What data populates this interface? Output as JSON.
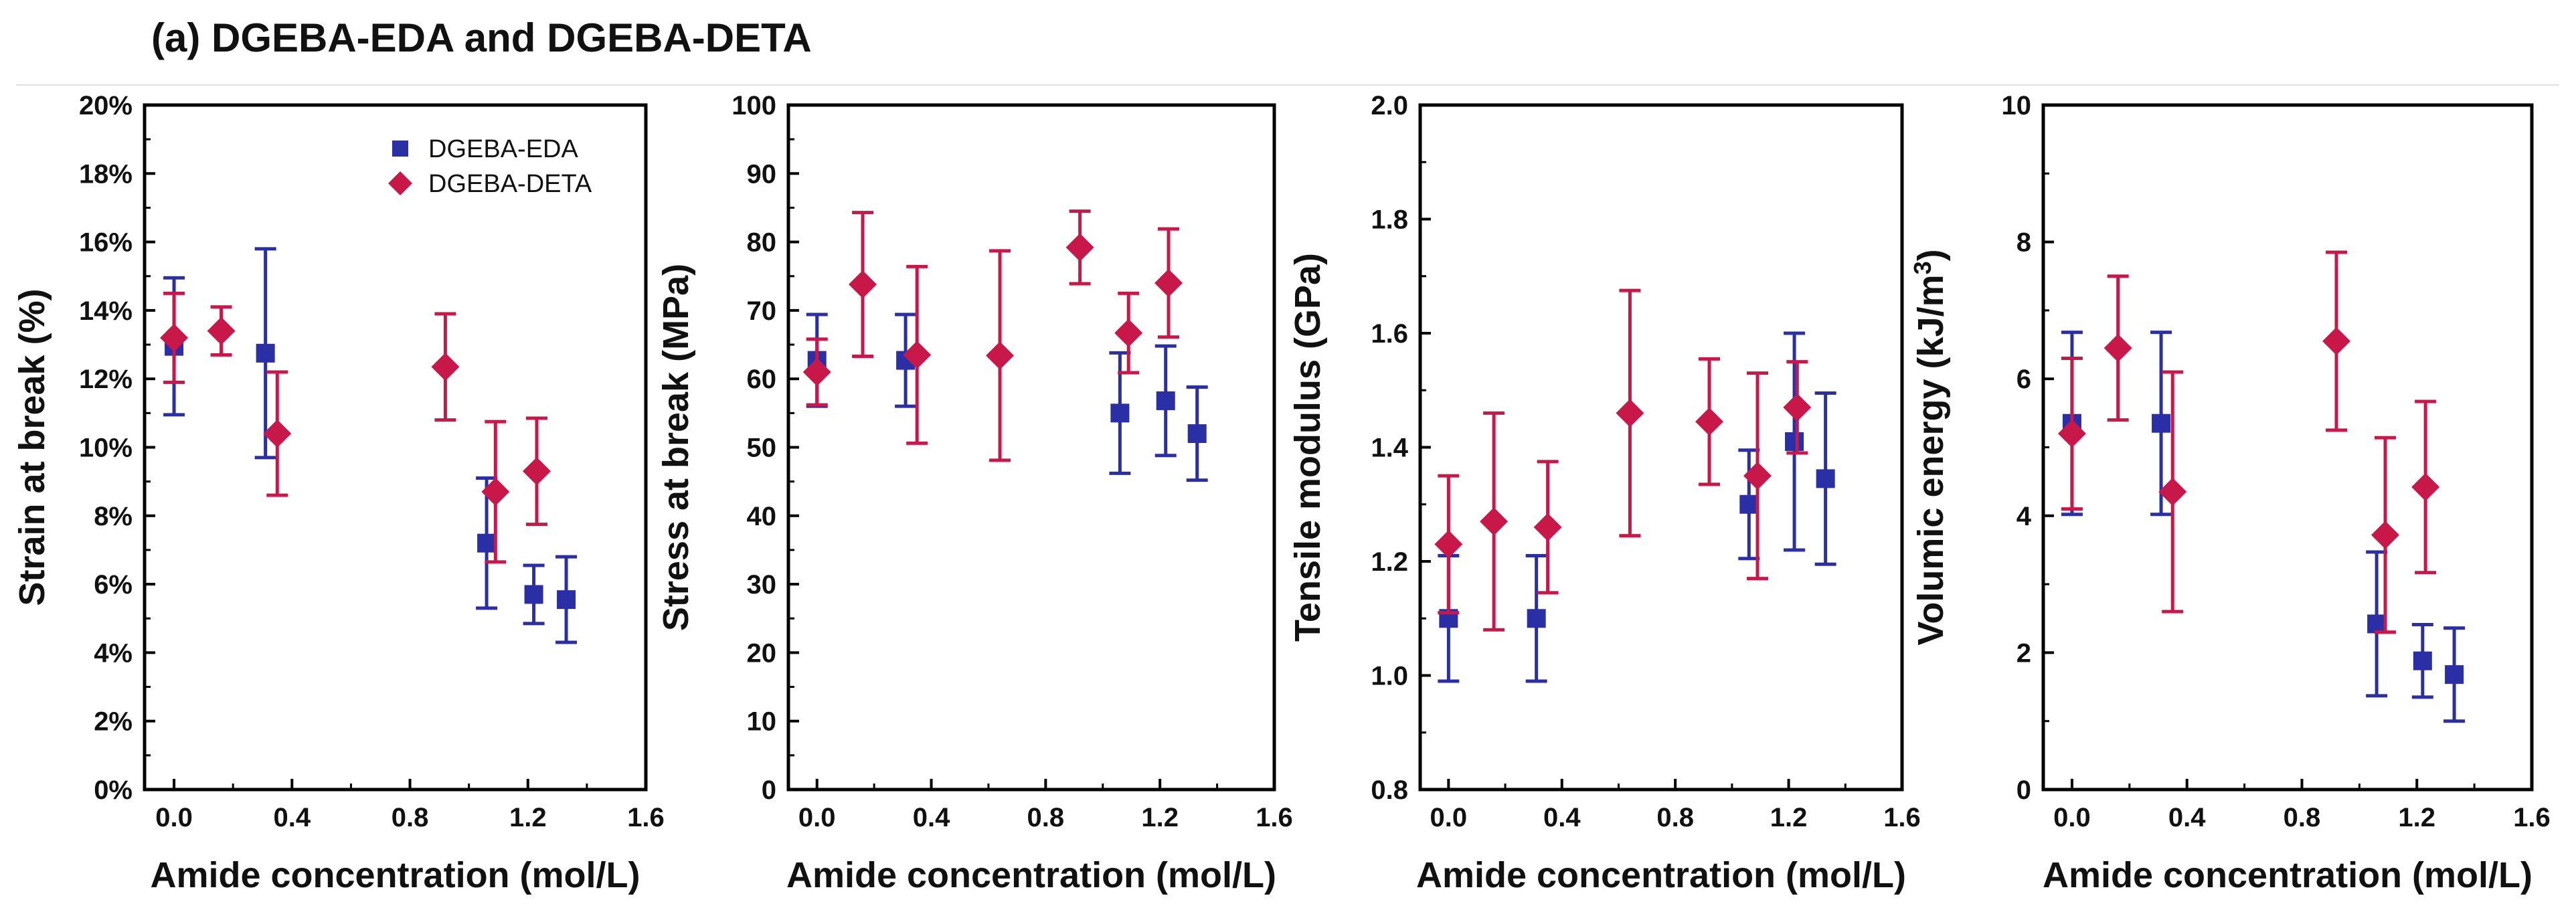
{
  "figure_title": "(a) DGEBA-EDA and DGEBA-DETA",
  "colors": {
    "DGEBA-EDA": "#2b2fa6",
    "DGEBA-DETA": "#c8184a"
  },
  "chart_data": [
    {
      "type": "scatter",
      "xlabel": "Amide concentration (mol/L)",
      "ylabel": "Strain at break (%)",
      "xlim": [
        -0.1,
        1.6
      ],
      "ylim": [
        0,
        20
      ],
      "xticks": [
        "0.0",
        "0.4",
        "0.8",
        "1.2",
        "1.6"
      ],
      "yticks": [
        "0%",
        "2%",
        "4%",
        "6%",
        "8%",
        "10%",
        "12%",
        "14%",
        "16%",
        "18%",
        "20%"
      ],
      "legend": "top-right",
      "series": [
        {
          "name": "DGEBA-EDA",
          "marker": "square",
          "x": [
            0.0,
            0.31,
            1.06,
            1.22,
            1.33
          ],
          "y": [
            12.95,
            12.75,
            7.2,
            5.7,
            5.55
          ],
          "err": [
            2.0,
            3.05,
            1.9,
            0.85,
            1.25
          ]
        },
        {
          "name": "DGEBA-DETA",
          "marker": "diamond",
          "x": [
            0.0,
            0.16,
            0.35,
            0.92,
            1.09,
            1.23
          ],
          "y": [
            13.2,
            13.4,
            10.4,
            12.35,
            8.7,
            9.3
          ],
          "err": [
            1.3,
            0.7,
            1.8,
            1.55,
            2.05,
            1.55
          ]
        }
      ]
    },
    {
      "type": "scatter",
      "xlabel": "Amide concentration (mol/L)",
      "ylabel": "Stress at break (MPa)",
      "xlim": [
        -0.1,
        1.6
      ],
      "ylim": [
        0,
        100
      ],
      "xticks": [
        "0.0",
        "0.4",
        "0.8",
        "1.2",
        "1.6"
      ],
      "yticks": [
        "0",
        "10",
        "20",
        "30",
        "40",
        "50",
        "60",
        "70",
        "80",
        "90",
        "100"
      ],
      "series": [
        {
          "name": "DGEBA-EDA",
          "marker": "square",
          "x": [
            0.0,
            0.31,
            1.06,
            1.22,
            1.33
          ],
          "y": [
            62.7,
            62.7,
            55.0,
            56.8,
            52.0
          ],
          "err": [
            6.7,
            6.7,
            8.8,
            8.0,
            6.8
          ]
        },
        {
          "name": "DGEBA-DETA",
          "marker": "diamond",
          "x": [
            0.0,
            0.16,
            0.35,
            0.64,
            0.92,
            1.09,
            1.23
          ],
          "y": [
            61.0,
            73.8,
            63.5,
            63.4,
            79.2,
            66.7,
            74.0
          ],
          "err": [
            4.8,
            10.5,
            12.9,
            15.3,
            5.3,
            5.8,
            7.9
          ]
        }
      ]
    },
    {
      "type": "scatter",
      "xlabel": "Amide concentration (mol/L)",
      "ylabel": "Tensile modulus (GPa)",
      "xlim": [
        -0.1,
        1.6
      ],
      "ylim": [
        0.8,
        2.0
      ],
      "xticks": [
        "0.0",
        "0.4",
        "0.8",
        "1.2",
        "1.6"
      ],
      "yticks": [
        "0.8",
        "1.0",
        "1.2",
        "1.4",
        "1.6",
        "1.8",
        "2.0"
      ],
      "series": [
        {
          "name": "DGEBA-EDA",
          "marker": "square",
          "x": [
            0.0,
            0.31,
            1.06,
            1.22,
            1.33
          ],
          "y": [
            1.1,
            1.1,
            1.3,
            1.41,
            1.345
          ],
          "err": [
            0.11,
            0.11,
            0.095,
            0.19,
            0.15
          ]
        },
        {
          "name": "DGEBA-DETA",
          "marker": "diamond",
          "x": [
            0.0,
            0.16,
            0.35,
            0.64,
            0.92,
            1.09,
            1.23
          ],
          "y": [
            1.23,
            1.27,
            1.26,
            1.46,
            1.445,
            1.35,
            1.47
          ],
          "err": [
            0.12,
            0.19,
            0.115,
            0.215,
            0.11,
            0.18,
            0.08
          ]
        }
      ]
    },
    {
      "type": "scatter",
      "xlabel": "Amide concentration (mol/L)",
      "ylabel": "Volumic energy (kJ/m",
      "ylabel_sup": "3",
      "ylabel_tail": ")",
      "xlim": [
        -0.1,
        1.6
      ],
      "ylim": [
        0,
        10
      ],
      "xticks": [
        "0.0",
        "0.4",
        "0.8",
        "1.2",
        "1.6"
      ],
      "yticks": [
        "0",
        "2",
        "4",
        "6",
        "8",
        "10"
      ],
      "series": [
        {
          "name": "DGEBA-EDA",
          "marker": "square",
          "x": [
            0.0,
            0.31,
            1.06,
            1.22,
            1.33
          ],
          "y": [
            5.35,
            5.35,
            2.42,
            1.88,
            1.68
          ],
          "err": [
            1.33,
            1.33,
            1.05,
            0.53,
            0.68
          ]
        },
        {
          "name": "DGEBA-DETA",
          "marker": "diamond",
          "x": [
            0.0,
            0.16,
            0.35,
            0.92,
            1.09,
            1.23
          ],
          "y": [
            5.2,
            6.45,
            4.35,
            6.55,
            3.72,
            4.42
          ],
          "err": [
            1.1,
            1.05,
            1.75,
            1.3,
            1.42,
            1.25
          ]
        }
      ]
    }
  ]
}
